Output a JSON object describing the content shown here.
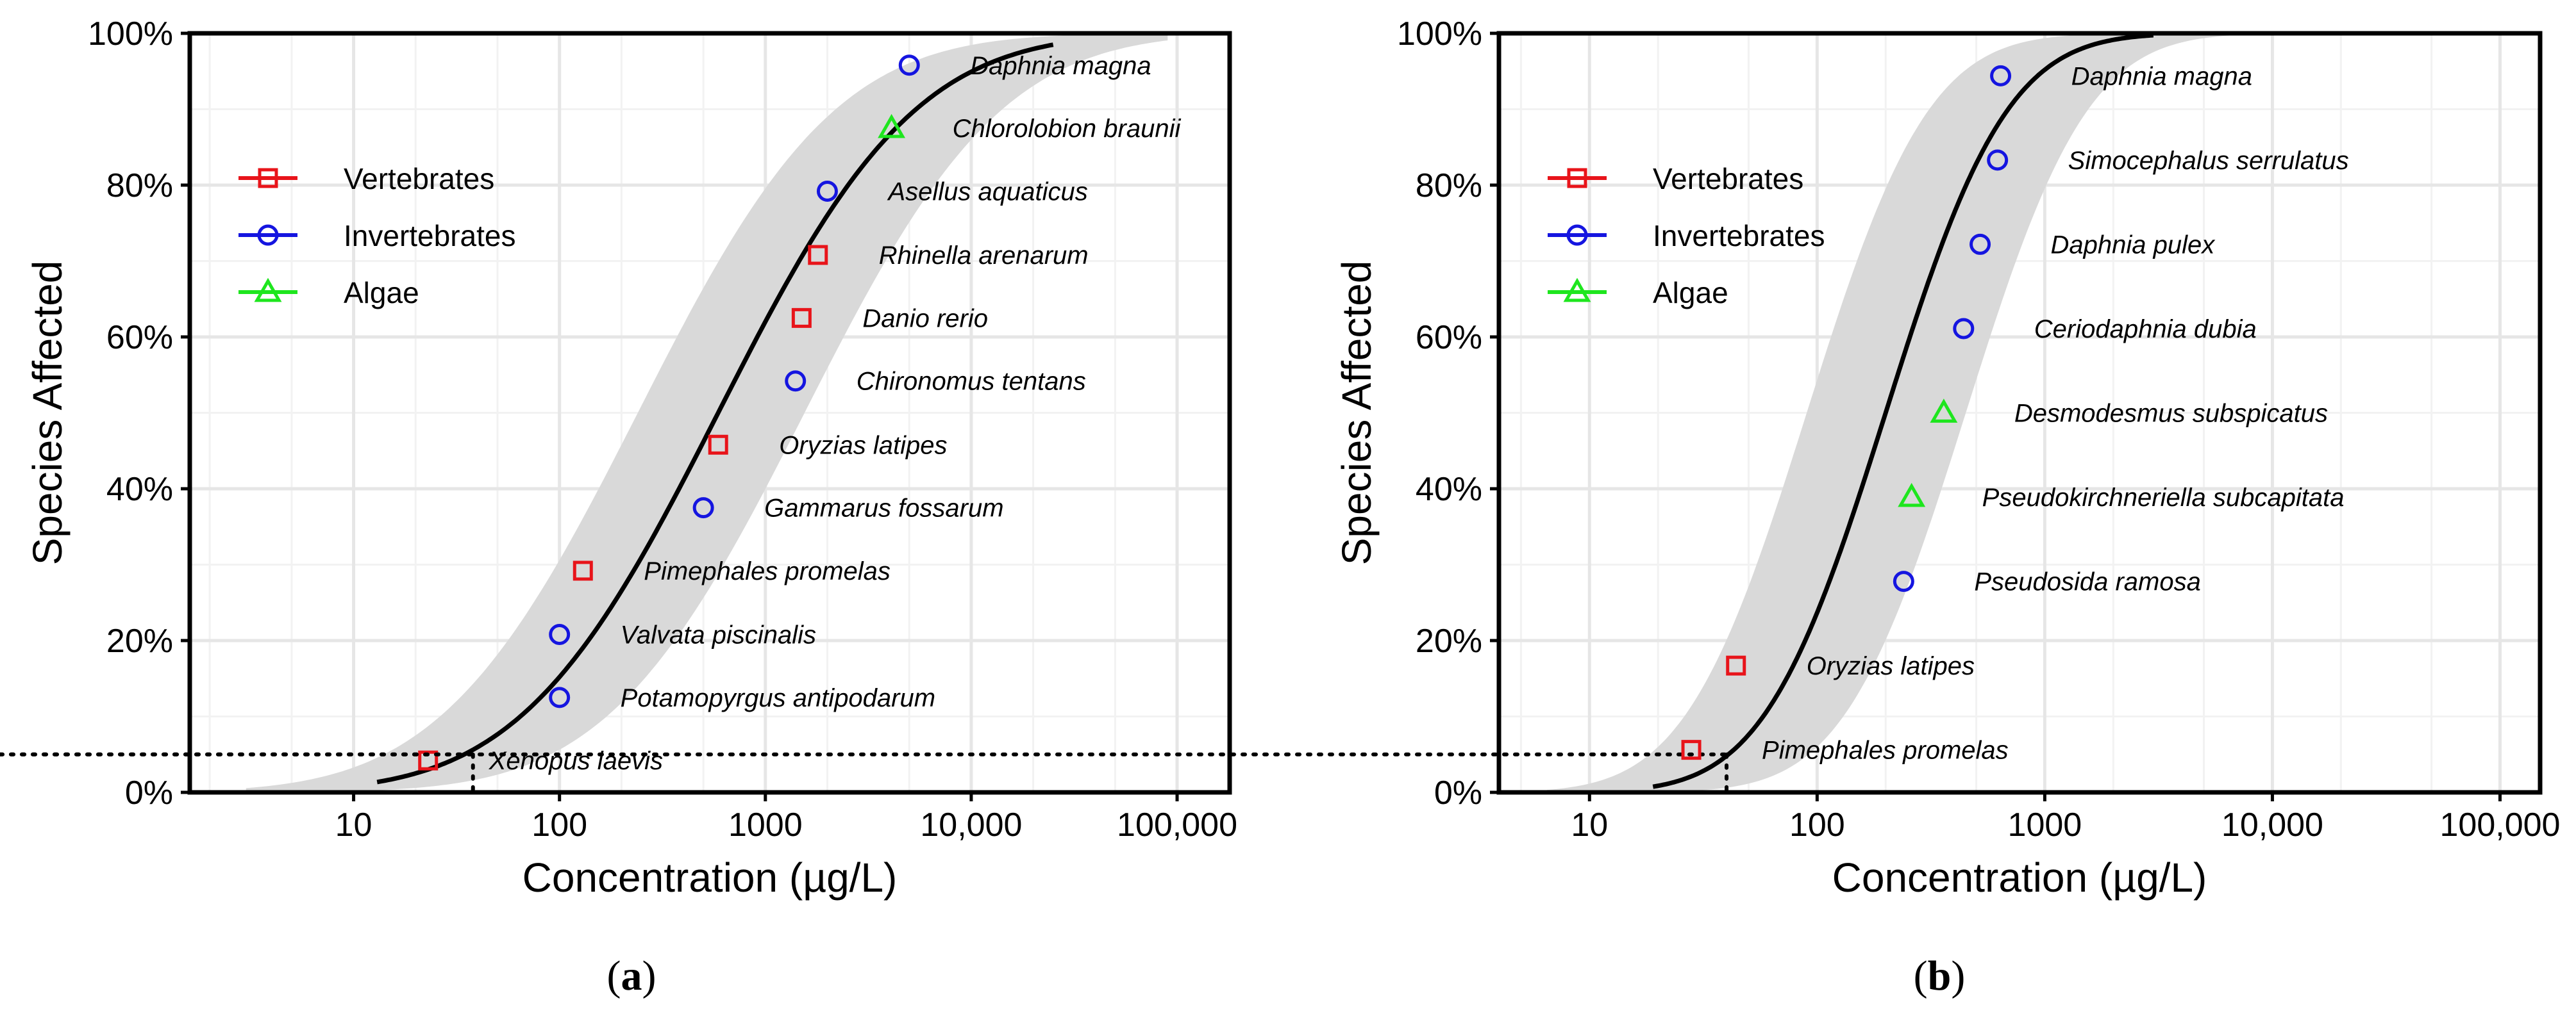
{
  "chart_data": [
    {
      "type": "scatter",
      "panel": "(a)",
      "panel_letter": "a",
      "xlabel": "Concentration (µg/L)",
      "ylabel": "Species Affected",
      "xscale": "log",
      "xlim": [
        1.6,
        180000
      ],
      "ylim": [
        0,
        100
      ],
      "x_ticks": [
        10,
        100,
        1000,
        10000,
        100000
      ],
      "x_tick_labels": [
        "10",
        "100",
        "1000",
        "10,000",
        "100,000"
      ],
      "y_ticks": [
        0,
        20,
        40,
        60,
        80,
        100
      ],
      "y_tick_labels": [
        "0%",
        "20%",
        "40%",
        "60%",
        "80%",
        "100%"
      ],
      "grid": true,
      "legend_position": "upper-left",
      "legend": [
        {
          "name": "Vertebrates",
          "color": "#e8141a",
          "marker": "square"
        },
        {
          "name": "Invertebrates",
          "color": "#1515e0",
          "marker": "circle"
        },
        {
          "name": "Algae",
          "color": "#1ee61e",
          "marker": "triangle"
        }
      ],
      "fit": {
        "type": "log-normal CDF",
        "median": 590,
        "log10_sd": 0.75,
        "x_range": [
          13,
          25000
        ]
      },
      "confidence_band": {
        "lower_median": 1550,
        "upper_median": 240,
        "log10_sd": 0.75,
        "x_range": [
          3,
          90000
        ],
        "color": "#d9d9d9"
      },
      "hc5": {
        "concentration": 38,
        "percent": 5
      },
      "points": [
        {
          "species": "Xenopus laevis",
          "group": "Vertebrates",
          "x": 23,
          "y": 4.2
        },
        {
          "species": "Potamopyrgus antipodarum",
          "group": "Invertebrates",
          "x": 100,
          "y": 12.5
        },
        {
          "species": "Valvata piscinalis",
          "group": "Invertebrates",
          "x": 100,
          "y": 20.8
        },
        {
          "species": "Pimephales promelas",
          "group": "Vertebrates",
          "x": 130,
          "y": 29.2
        },
        {
          "species": "Gammarus fossarum",
          "group": "Invertebrates",
          "x": 500,
          "y": 37.5
        },
        {
          "species": "Oryzias latipes",
          "group": "Vertebrates",
          "x": 590,
          "y": 45.8
        },
        {
          "species": "Chironomus tentans",
          "group": "Invertebrates",
          "x": 1400,
          "y": 54.2
        },
        {
          "species": "Danio rerio",
          "group": "Vertebrates",
          "x": 1500,
          "y": 62.5
        },
        {
          "species": "Rhinella arenarum",
          "group": "Vertebrates",
          "x": 1800,
          "y": 70.8
        },
        {
          "species": "Asellus aquaticus",
          "group": "Invertebrates",
          "x": 2000,
          "y": 79.2
        },
        {
          "species": "Chlorolobion braunii",
          "group": "Algae",
          "x": 4100,
          "y": 87.5
        },
        {
          "species": "Daphnia magna",
          "group": "Invertebrates",
          "x": 5000,
          "y": 95.8
        }
      ]
    },
    {
      "type": "scatter",
      "panel": "(b)",
      "panel_letter": "b",
      "xlabel": "Concentration (µg/L)",
      "ylabel": "Species Affected",
      "xscale": "log",
      "xlim": [
        4,
        150000
      ],
      "ylim": [
        0,
        100
      ],
      "x_ticks": [
        10,
        100,
        1000,
        10000,
        100000
      ],
      "x_tick_labels": [
        "10",
        "100",
        "1000",
        "10,000",
        "100,000"
      ],
      "y_ticks": [
        0,
        20,
        40,
        60,
        80,
        100
      ],
      "y_tick_labels": [
        "0%",
        "20%",
        "40%",
        "60%",
        "80%",
        "100%"
      ],
      "grid": true,
      "legend_position": "upper-left",
      "legend": [
        {
          "name": "Vertebrates",
          "color": "#e8141a",
          "marker": "square"
        },
        {
          "name": "Invertebrates",
          "color": "#1515e0",
          "marker": "circle"
        },
        {
          "name": "Algae",
          "color": "#1ee61e",
          "marker": "triangle"
        }
      ],
      "fit": {
        "type": "log-normal CDF",
        "median": 200,
        "log10_sd": 0.42,
        "x_range": [
          19,
          3000
        ]
      },
      "confidence_band": {
        "lower_median": 450,
        "upper_median": 90,
        "log10_sd": 0.42,
        "x_range": [
          6.5,
          30000
        ],
        "color": "#d9d9d9"
      },
      "hc5": {
        "concentration": 40,
        "percent": 5
      },
      "points": [
        {
          "species": "Pimephales promelas",
          "group": "Vertebrates",
          "x": 28,
          "y": 5.6
        },
        {
          "species": "Oryzias latipes",
          "group": "Vertebrates",
          "x": 44,
          "y": 16.7
        },
        {
          "species": "Pseudosida ramosa",
          "group": "Invertebrates",
          "x": 240,
          "y": 27.8
        },
        {
          "species": "Pseudokirchneriella subcapitata",
          "group": "Algae",
          "x": 260,
          "y": 38.9
        },
        {
          "species": "Desmodesmus subspicatus",
          "group": "Algae",
          "x": 360,
          "y": 50.0
        },
        {
          "species": "Ceriodaphnia dubia",
          "group": "Invertebrates",
          "x": 440,
          "y": 61.1
        },
        {
          "species": "Daphnia pulex",
          "group": "Invertebrates",
          "x": 520,
          "y": 72.2
        },
        {
          "species": "Simocephalus serrulatus",
          "group": "Invertebrates",
          "x": 620,
          "y": 83.3
        },
        {
          "species": "Daphnia magna",
          "group": "Invertebrates",
          "x": 640,
          "y": 94.4
        }
      ]
    }
  ],
  "captions": [
    {
      "open": "(",
      "letter": "a",
      "close": ")"
    },
    {
      "open": "(",
      "letter": "b",
      "close": ")"
    }
  ]
}
